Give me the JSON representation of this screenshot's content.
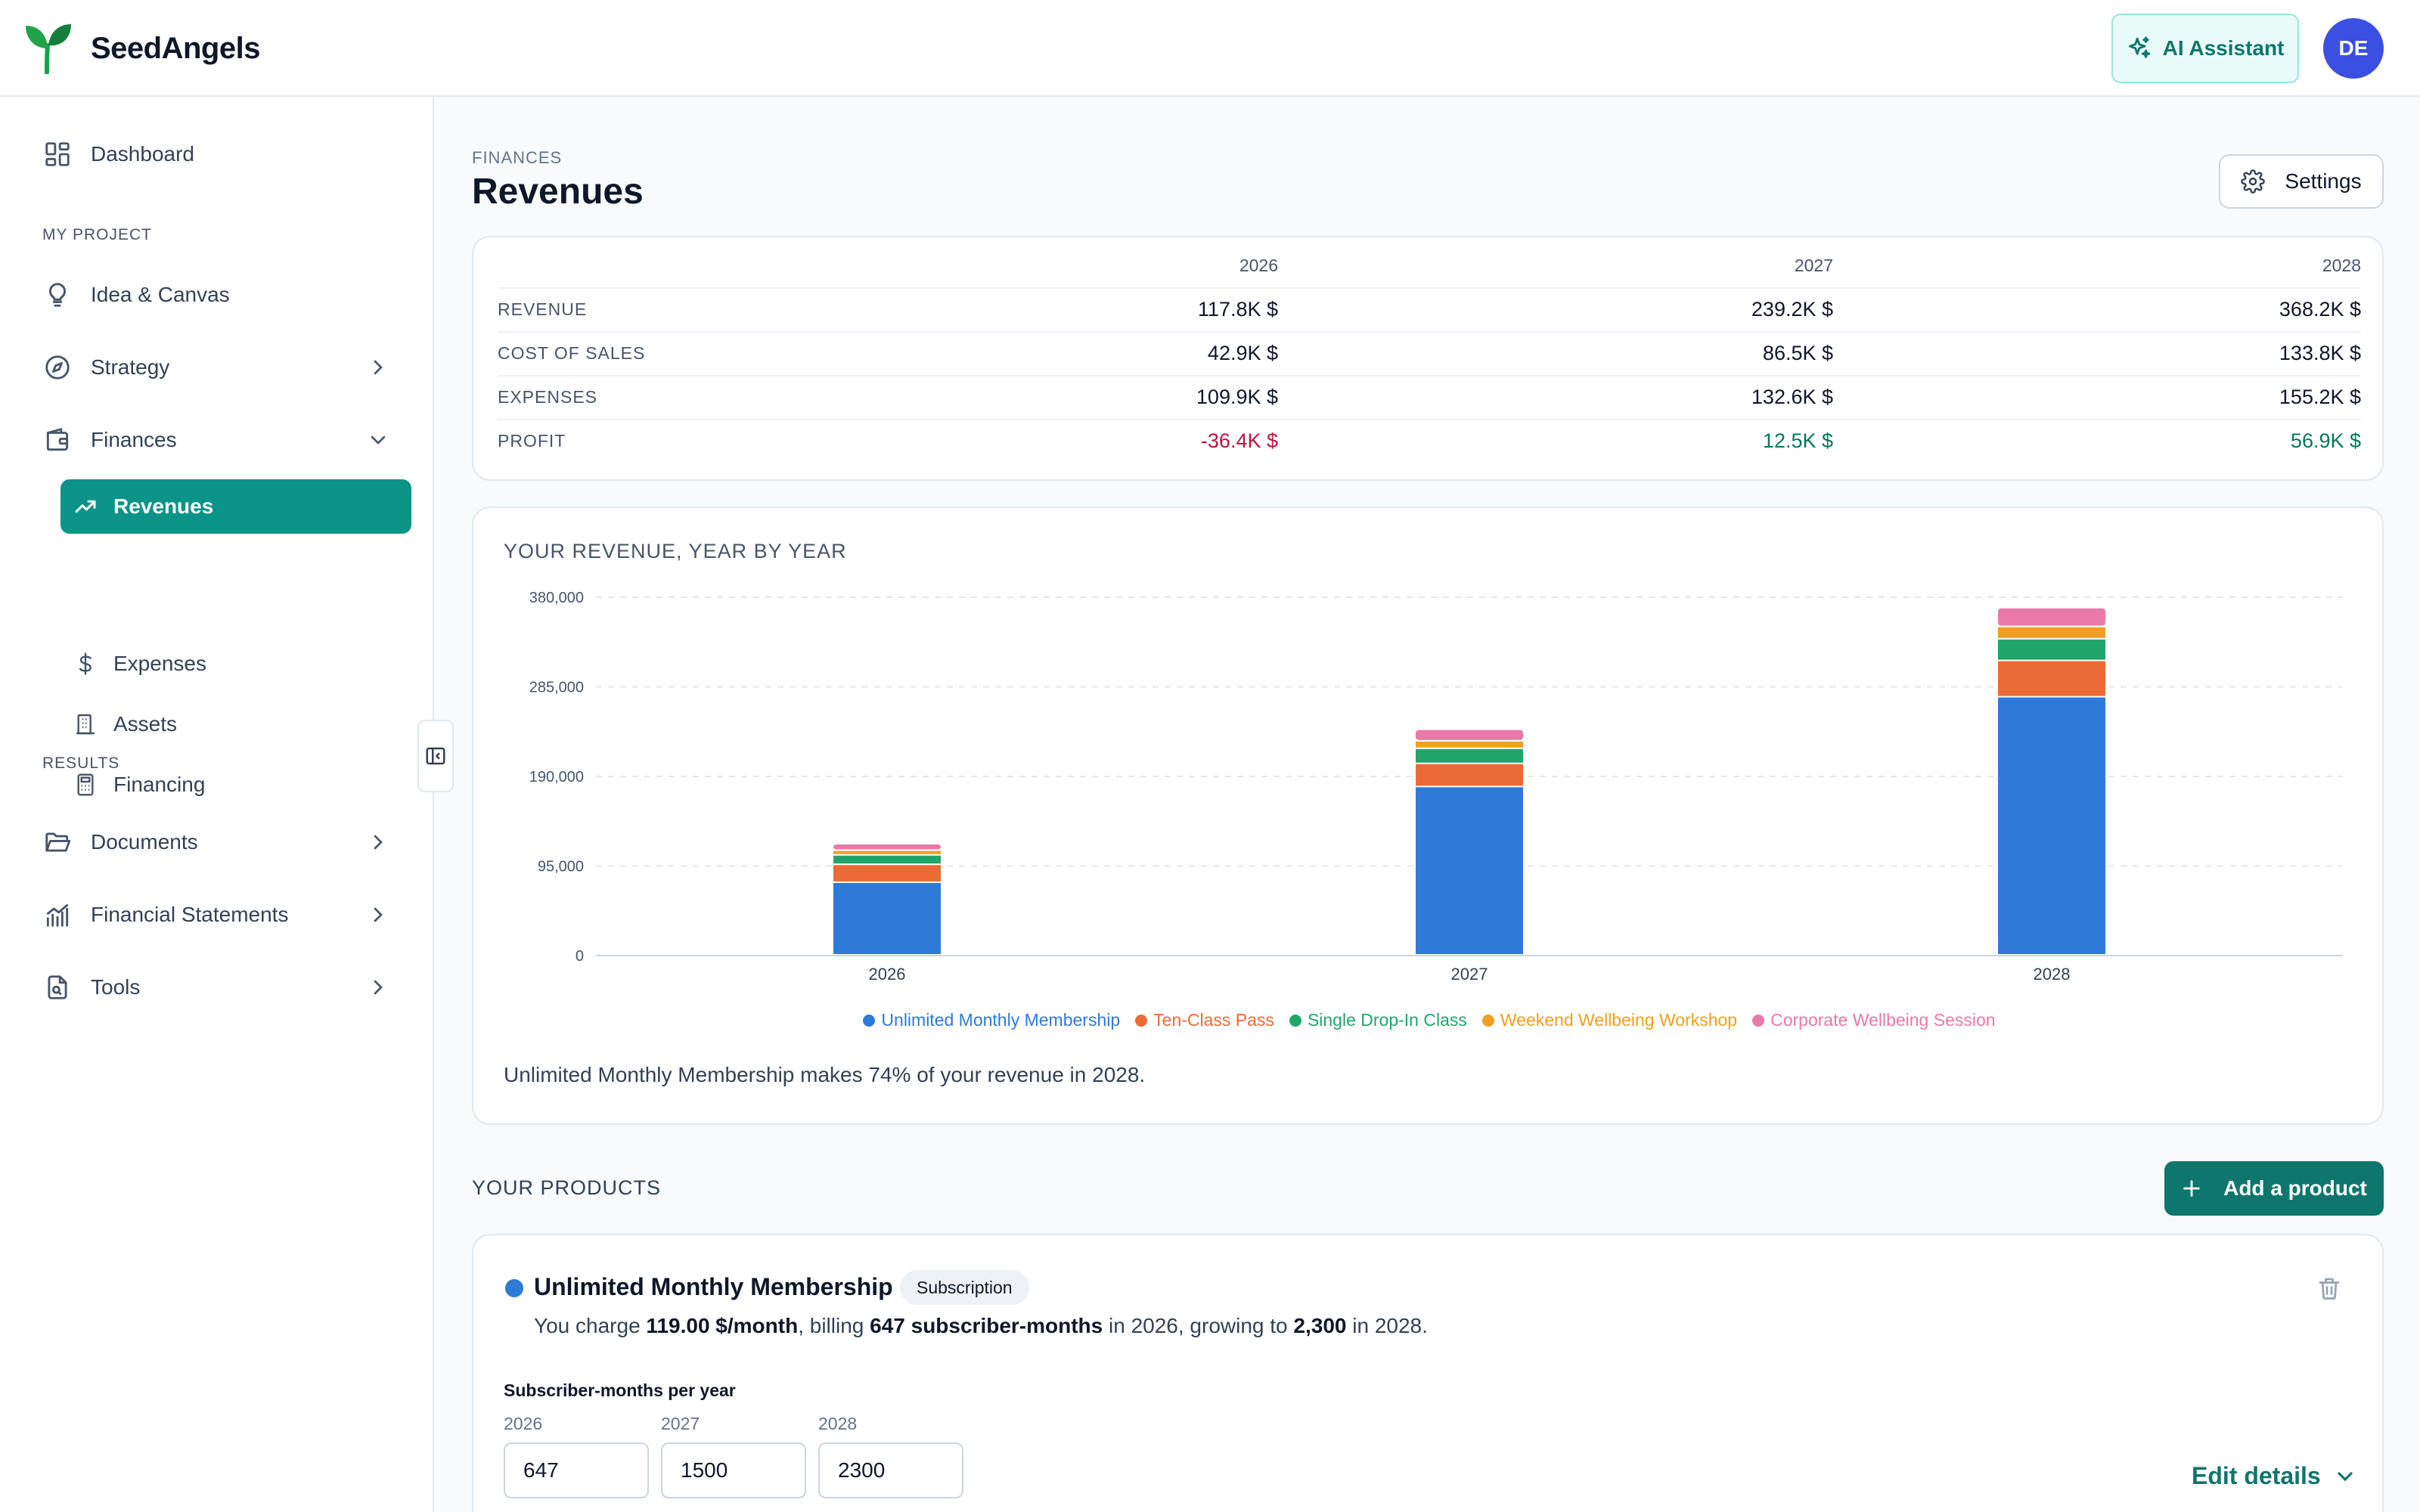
{
  "app": {
    "name": "SeedAngels",
    "ai_assistant_label": "AI Assistant",
    "avatar_initials": "DE",
    "accent_color": "#0d9488"
  },
  "sidebar": {
    "dashboard": "Dashboard",
    "section_project": "MY PROJECT",
    "idea_canvas": "Idea & Canvas",
    "strategy": "Strategy",
    "finances": "Finances",
    "revenues": "Revenues",
    "expenses": "Expenses",
    "assets": "Assets",
    "financing": "Financing",
    "section_results": "RESULTS",
    "documents": "Documents",
    "financial_statements": "Financial Statements",
    "tools": "Tools"
  },
  "page": {
    "breadcrumb": "FINANCES",
    "title": "Revenues",
    "settings_label": "Settings"
  },
  "summary": {
    "years": [
      "2026",
      "2027",
      "2028"
    ],
    "rows": [
      {
        "label": "REVENUE",
        "values": [
          "117.8K $",
          "239.2K $",
          "368.2K $"
        ],
        "tones": [
          "",
          "",
          ""
        ]
      },
      {
        "label": "COST OF SALES",
        "values": [
          "42.9K $",
          "86.5K $",
          "133.8K $"
        ],
        "tones": [
          "",
          "",
          ""
        ]
      },
      {
        "label": "EXPENSES",
        "values": [
          "109.9K $",
          "132.6K $",
          "155.2K $"
        ],
        "tones": [
          "",
          "",
          ""
        ]
      },
      {
        "label": "PROFIT",
        "values": [
          "-36.4K $",
          "12.5K $",
          "56.9K $"
        ],
        "tones": [
          "neg",
          "pos",
          "pos"
        ]
      }
    ]
  },
  "chart": {
    "note": "Unlimited Monthly Membership makes 74% of your revenue in 2028."
  },
  "chart_data": {
    "type": "bar",
    "stacked": true,
    "title": "YOUR REVENUE, YEAR BY YEAR",
    "categories": [
      "2026",
      "2027",
      "2028"
    ],
    "ylim": [
      0,
      380000
    ],
    "yticks": [
      0,
      95000,
      190000,
      285000,
      380000
    ],
    "ytick_labels": [
      "0",
      "95,000",
      "190,000",
      "285,000",
      "380,000"
    ],
    "grid": true,
    "legend_position": "bottom",
    "series": [
      {
        "name": "Unlimited Monthly Membership",
        "color": "#2f7ad9",
        "values": [
          77000,
          178500,
          273700
        ]
      },
      {
        "name": "Ten-Class Pass",
        "color": "#ec6a36",
        "values": [
          19000,
          24500,
          38500
        ]
      },
      {
        "name": "Single Drop-In Class",
        "color": "#22a56a",
        "values": [
          10000,
          16000,
          23000
        ]
      },
      {
        "name": "Weekend Wellbeing Workshop",
        "color": "#f0a020",
        "values": [
          5000,
          8000,
          13000
        ]
      },
      {
        "name": "Corporate Wellbeing Session",
        "color": "#e879a8",
        "values": [
          6800,
          12200,
          20000
        ]
      }
    ]
  },
  "products": {
    "section_label": "YOUR PRODUCTS",
    "add_label": "Add a product",
    "items": [
      {
        "name": "Unlimited Monthly Membership",
        "badge": "Subscription",
        "dot_color": "#2f7ad9",
        "desc_you_charge": "You charge ",
        "price": "119.00 $/month",
        "desc_billing": ", billing ",
        "qty_start": "647 subscriber-months",
        "desc_in_growing": " in 2026, growing to ",
        "qty_end": "2,300",
        "desc_in_end": " in 2028.",
        "field_title": "Subscriber-months per year",
        "years": [
          "2026",
          "2027",
          "2028"
        ],
        "inputs": [
          "647",
          "1500",
          "2300"
        ],
        "edit_label": "Edit details"
      }
    ]
  }
}
